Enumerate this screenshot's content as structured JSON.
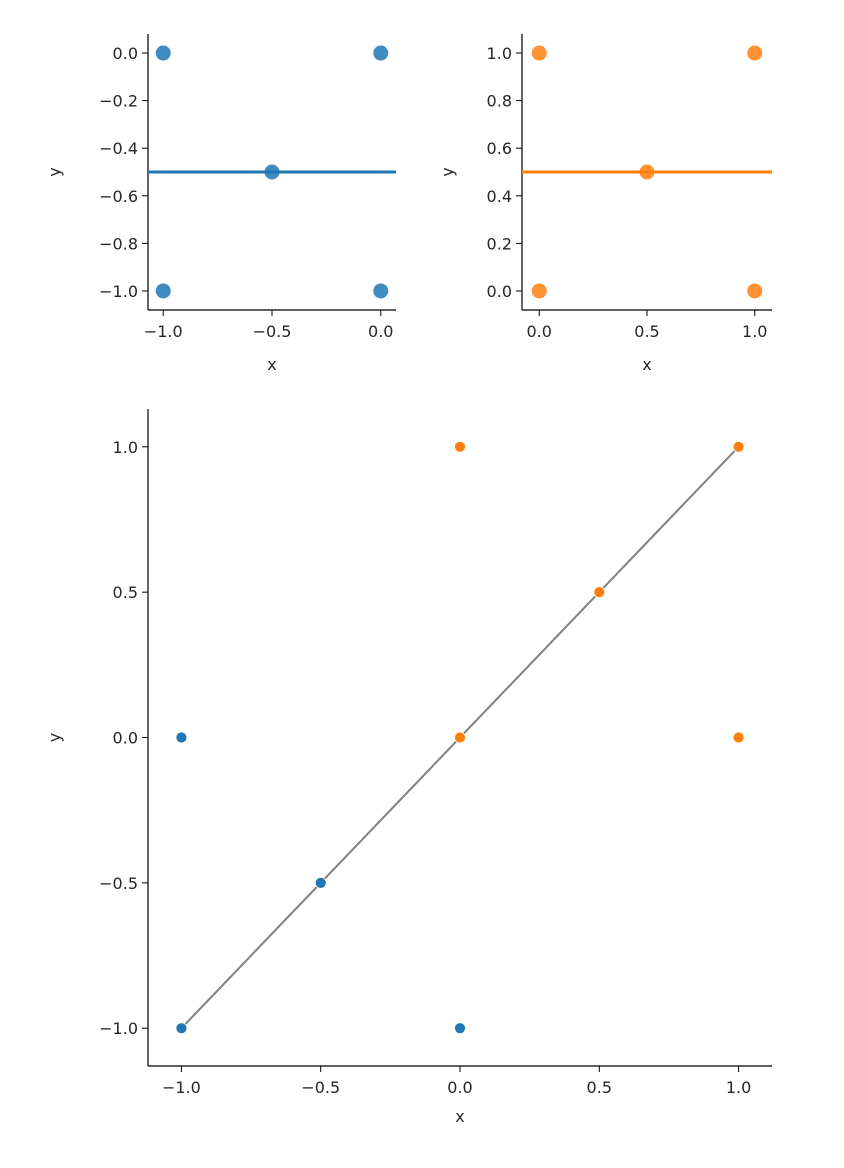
{
  "chart_data": [
    {
      "type": "scatter",
      "xlabel": "x",
      "ylabel": "y",
      "xlim": [
        -1.07,
        0.07
      ],
      "ylim": [
        -1.08,
        0.08
      ],
      "xticks": [
        -1.0,
        -0.5,
        0.0
      ],
      "xtick_labels": [
        "−1.0",
        "−0.5",
        "0.0"
      ],
      "yticks": [
        0.0,
        -0.2,
        -0.4,
        -0.6,
        -0.8,
        -1.0
      ],
      "ytick_labels": [
        "0.0",
        "−0.2",
        "−0.4",
        "−0.6",
        "−0.8",
        "−1.0"
      ],
      "grid": false,
      "color": "#1f77b4",
      "points": {
        "x": [
          -1.0,
          0.0,
          -0.5,
          -1.0,
          0.0
        ],
        "y": [
          0.0,
          0.0,
          -0.5,
          -1.0,
          -1.0
        ]
      },
      "hline": {
        "y": -0.5
      }
    },
    {
      "type": "scatter",
      "xlabel": "x",
      "ylabel": "y",
      "xlim": [
        -0.08,
        1.08
      ],
      "ylim": [
        -0.08,
        1.08
      ],
      "xticks": [
        0.0,
        0.5,
        1.0
      ],
      "xtick_labels": [
        "0.0",
        "0.5",
        "1.0"
      ],
      "yticks": [
        1.0,
        0.8,
        0.6,
        0.4,
        0.2,
        0.0
      ],
      "ytick_labels": [
        "1.0",
        "0.8",
        "0.6",
        "0.4",
        "0.2",
        "0.0"
      ],
      "grid": false,
      "color": "#ff7f0e",
      "points": {
        "x": [
          0.0,
          1.0,
          0.5,
          0.0,
          1.0
        ],
        "y": [
          1.0,
          1.0,
          0.5,
          0.0,
          0.0
        ]
      },
      "hline": {
        "y": 0.5
      }
    },
    {
      "type": "scatter",
      "xlabel": "x",
      "ylabel": "y",
      "xlim": [
        -1.12,
        1.12
      ],
      "ylim": [
        -1.13,
        1.13
      ],
      "xticks": [
        -1.0,
        -0.5,
        0.0,
        0.5,
        1.0
      ],
      "xtick_labels": [
        "−1.0",
        "−0.5",
        "0.0",
        "0.5",
        "1.0"
      ],
      "yticks": [
        1.0,
        0.5,
        0.0,
        -0.5,
        -1.0
      ],
      "ytick_labels": [
        "1.0",
        "0.5",
        "0.0",
        "−0.5",
        "−1.0"
      ],
      "grid": false,
      "series": [
        {
          "color": "#1f77b4",
          "x": [
            -1.0,
            -0.5,
            -1.0,
            0.0
          ],
          "y": [
            0.0,
            -0.5,
            -1.0,
            -1.0
          ]
        },
        {
          "color": "#ff7f0e",
          "x": [
            0.0,
            1.0,
            0.5,
            0.0,
            1.0
          ],
          "y": [
            1.0,
            1.0,
            0.5,
            0.0,
            0.0
          ]
        }
      ],
      "diagonal": {
        "x": [
          -1.0,
          1.0
        ],
        "y": [
          -1.0,
          1.0
        ],
        "color": "#808080"
      }
    }
  ]
}
